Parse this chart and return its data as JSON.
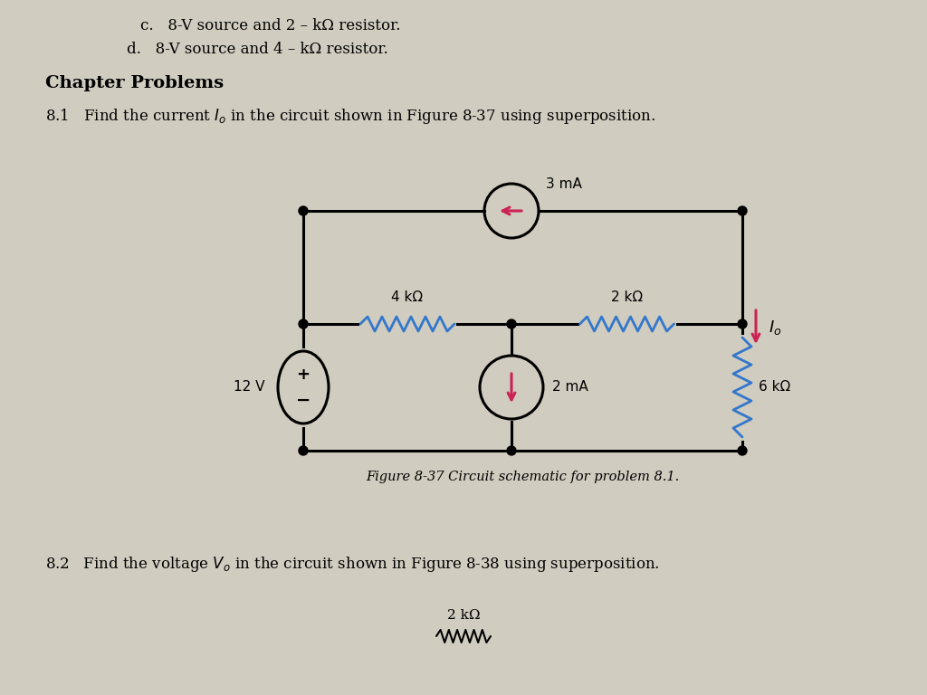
{
  "bg_color": "#d8d4cc",
  "text_color": "#111111",
  "wire_color": "#000000",
  "resistor_color": "#3377cc",
  "arrow_color": "#cc2255",
  "node_color": "#000000",
  "top_c_line": "c.   8-V source and 2 – kΩ resistor.",
  "top_d_line": "d.   8-V source and 4 – kΩ resistor.",
  "chapter_title": "Chapter Problems",
  "prob81": "8.1   Find the current $I_o$ in the circuit shown in Figure 8-37 using superposition.",
  "prob82": "8.2   Find the voltage $V_o$ in the circuit shown in Figure 8-38 using superposition.",
  "fig_caption": "Figure 8-37 Circuit schematic for problem 8.1.",
  "bottom_resistor_label": "2 kΩ",
  "r4k_label": "4 kΩ",
  "r2k_label": "2 kΩ",
  "r6k_label": "6 kΩ",
  "v12_label": "12 V",
  "i3ma_label": "3 mA",
  "i2ma_label": "2 mA",
  "Io_label": "$I_o$"
}
